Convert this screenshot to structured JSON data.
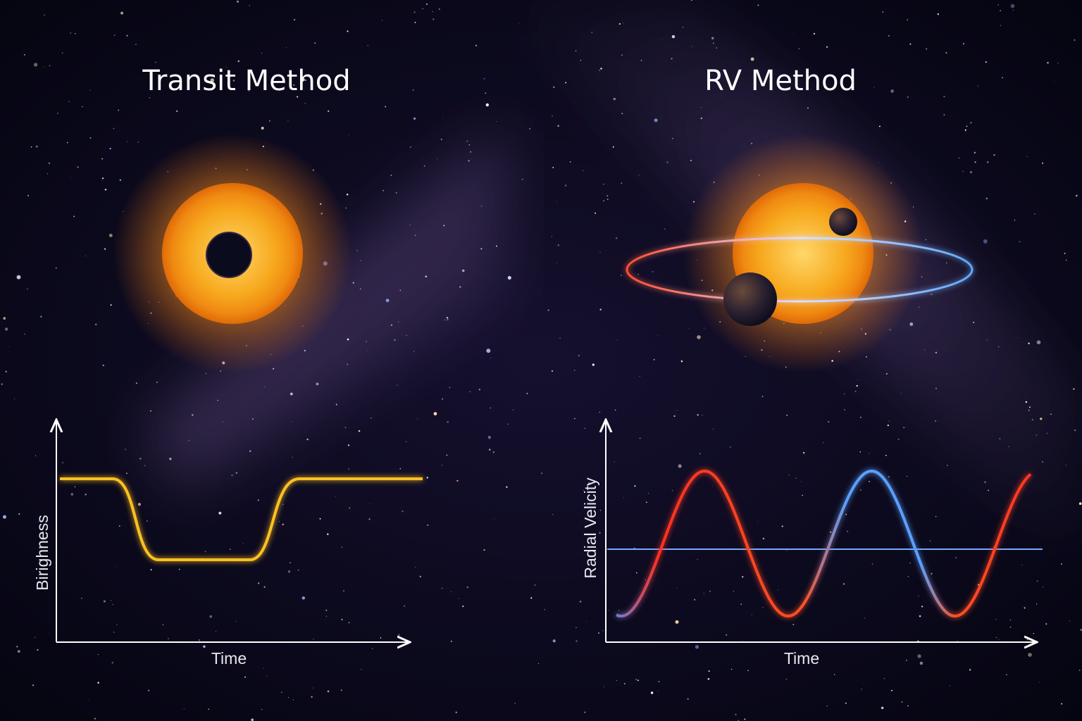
{
  "panels": [
    {
      "title": "Transit Method",
      "y_label": "Birighness",
      "x_label": "Time"
    },
    {
      "title": "RV Method",
      "y_label": "Radial Velicity",
      "x_label": "Time"
    }
  ]
}
